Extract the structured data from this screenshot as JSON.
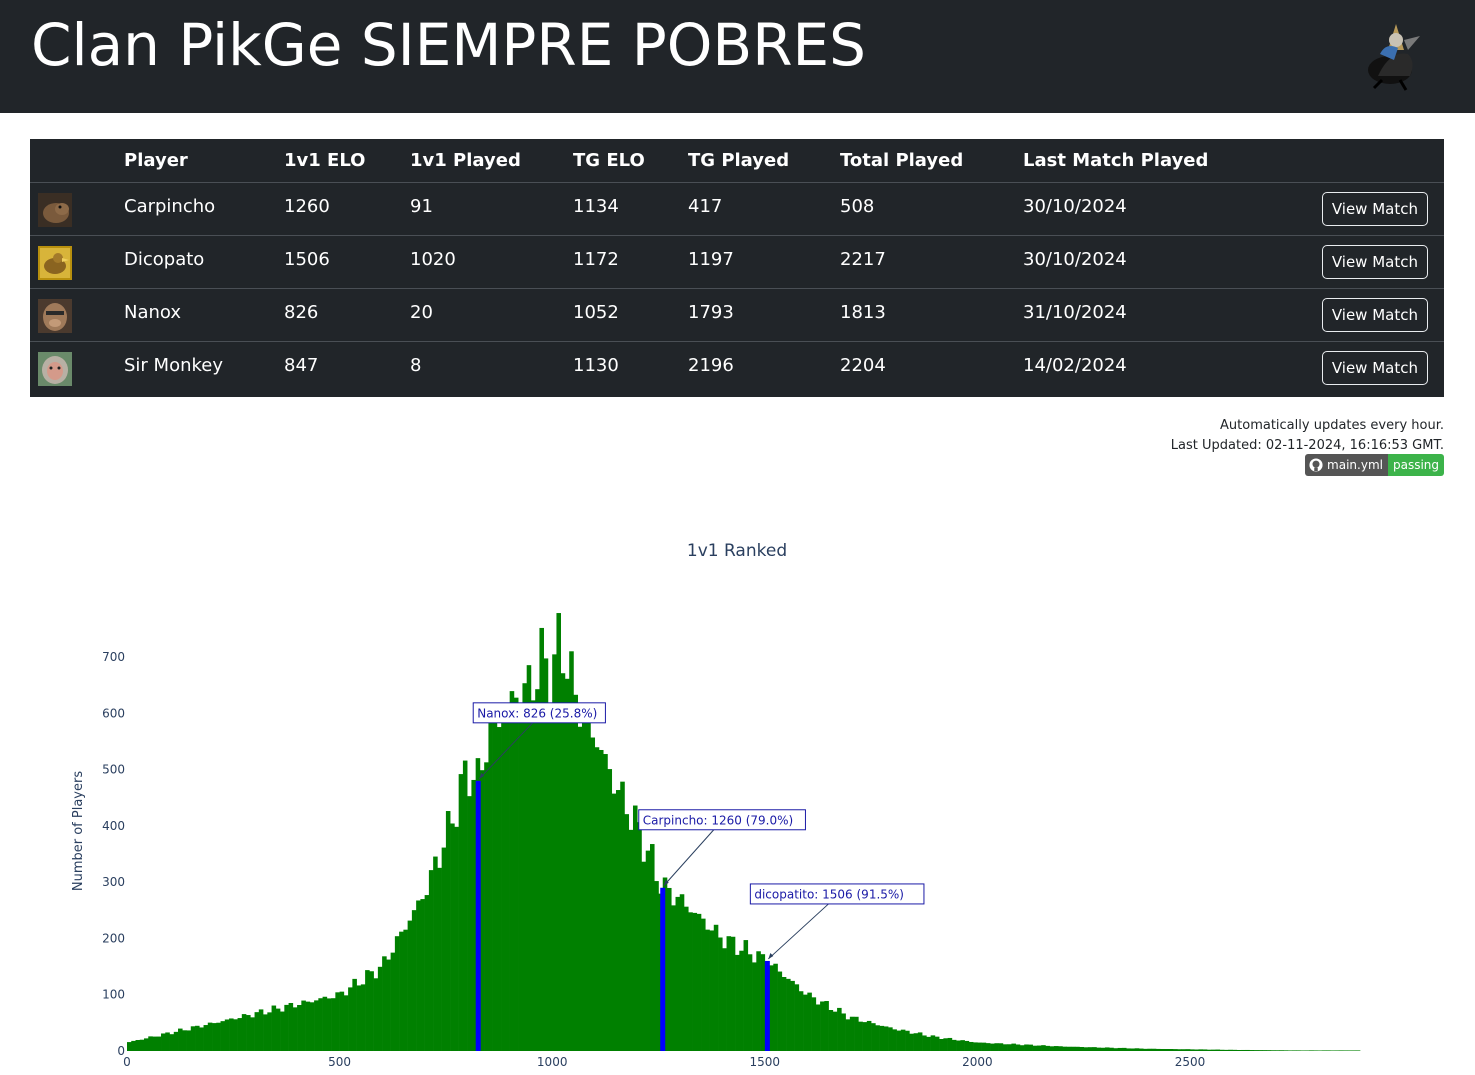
{
  "header": {
    "title": "Clan PikGe SIEMPRE POBRES"
  },
  "table": {
    "columns": [
      "",
      "Player",
      "1v1 ELO",
      "1v1 Played",
      "TG ELO",
      "TG Played",
      "Total Played",
      "Last Match Played",
      ""
    ],
    "rows": [
      {
        "player": "Carpincho",
        "elo_1v1": "1260",
        "played_1v1": "91",
        "elo_tg": "1134",
        "played_tg": "417",
        "total": "508",
        "last": "30/10/2024",
        "button": "View Match"
      },
      {
        "player": "Dicopato",
        "elo_1v1": "1506",
        "played_1v1": "1020",
        "elo_tg": "1172",
        "played_tg": "1197",
        "total": "2217",
        "last": "30/10/2024",
        "button": "View Match"
      },
      {
        "player": "Nanox",
        "elo_1v1": "826",
        "played_1v1": "20",
        "elo_tg": "1052",
        "played_tg": "1793",
        "total": "1813",
        "last": "31/10/2024",
        "button": "View Match"
      },
      {
        "player": "Sir Monkey",
        "elo_1v1": "847",
        "played_1v1": "8",
        "elo_tg": "1130",
        "played_tg": "2196",
        "total": "2204",
        "last": "14/02/2024",
        "button": "View Match"
      }
    ]
  },
  "updates": {
    "line1": "Automatically updates every hour.",
    "line2": "Last Updated: 02-11-2024, 16:16:53 GMT.",
    "badge_label": "main.yml",
    "badge_status": "passing",
    "badge_color": "#3cb34a"
  },
  "chart_data": {
    "type": "bar",
    "title": "1v1 Ranked",
    "xlabel": "",
    "ylabel": "Number of Players",
    "xlim": [
      0,
      2900
    ],
    "ylim": [
      0,
      740
    ],
    "xticks": [
      0,
      500,
      1000,
      1500,
      2000,
      2500
    ],
    "yticks": [
      0,
      100,
      200,
      300,
      400,
      500,
      600,
      700
    ],
    "bar_color": "#008000",
    "highlight_color": "#0000ff",
    "bin_width": 10,
    "x": [
      0,
      500,
      600,
      700,
      760,
      800,
      826,
      850,
      900,
      950,
      980,
      1000,
      1020,
      1050,
      1100,
      1150,
      1200,
      1260,
      1300,
      1400,
      1506,
      1600,
      1700,
      1800,
      1900,
      2000,
      2200,
      2400,
      2600,
      2750
    ],
    "values": [
      15,
      100,
      150,
      280,
      400,
      500,
      480,
      560,
      620,
      650,
      700,
      660,
      740,
      640,
      560,
      470,
      400,
      290,
      270,
      200,
      160,
      100,
      60,
      40,
      25,
      15,
      8,
      4,
      2,
      1
    ],
    "highlights": [
      {
        "label": "Nanox: 826 (25.8%)",
        "x": 826,
        "y": 480
      },
      {
        "label": "Carpincho: 1260 (79.0%)",
        "x": 1260,
        "y": 290
      },
      {
        "label": "dicopatito: 1506 (91.5%)",
        "x": 1506,
        "y": 160
      }
    ]
  }
}
